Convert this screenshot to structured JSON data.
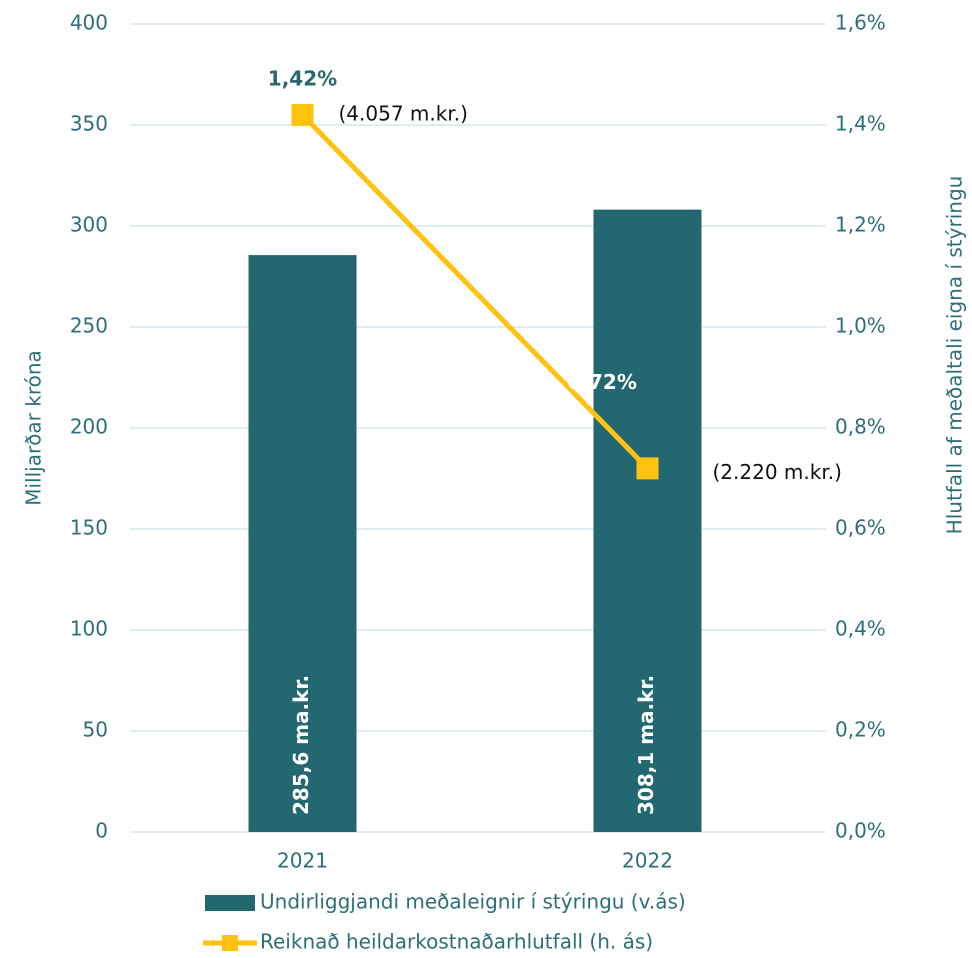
{
  "chart_data": {
    "type": "bar",
    "categories": [
      "2021",
      "2022"
    ],
    "ylabel": "Milljarðar króna",
    "y2label": "Hlutfall af meðaltali eigna í stýringu",
    "ylim": [
      0,
      400
    ],
    "yticks": [
      0,
      50,
      100,
      150,
      200,
      250,
      300,
      350,
      400
    ],
    "y2lim": [
      0,
      1.6
    ],
    "y2ticks": [
      {
        "value": 0,
        "label": "0,0%"
      },
      {
        "value": 0.2,
        "label": "0,2%"
      },
      {
        "value": 0.4,
        "label": "0,4%"
      },
      {
        "value": 0.6,
        "label": "0,6%"
      },
      {
        "value": 0.8,
        "label": "0,8%"
      },
      {
        "value": 1.0,
        "label": "1,0%"
      },
      {
        "value": 1.2,
        "label": "1,2%"
      },
      {
        "value": 1.4,
        "label": "1,4%"
      },
      {
        "value": 1.6,
        "label": "1,6%"
      }
    ],
    "grid": true,
    "legend": "bottom",
    "series": [
      {
        "name": "Undirliggjandi meðaleignir í stýringu (v.ás)",
        "type": "bar",
        "color": "#236870",
        "values": [
          285.6,
          308.1
        ],
        "value_labels": [
          "285,6 ma.kr.",
          "308,1 ma.kr."
        ]
      },
      {
        "name": "Reiknað heildarkostnaðarhlutfall (h. ás)",
        "type": "line",
        "axis": "y2",
        "color": "#ffc20e",
        "values": [
          1.42,
          0.72
        ],
        "value_labels": [
          "1,42%",
          "0,72%"
        ],
        "annotations": [
          "(4.057 m.kr.)",
          "(2.220 m.kr.)"
        ]
      }
    ]
  }
}
